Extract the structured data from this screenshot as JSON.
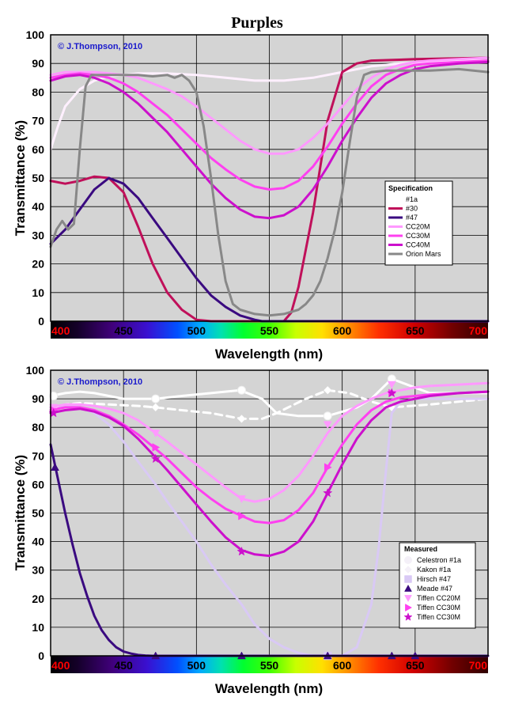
{
  "figure_title": "Purples",
  "copyright": "© J.Thompson, 2010",
  "chart_data": [
    {
      "type": "line",
      "ylabel": "Transmittance (%)",
      "xlabel": "Wavelength (nm)",
      "xlim": [
        400,
        700
      ],
      "ylim": [
        0,
        100
      ],
      "xticks": [
        "400",
        "450",
        "500",
        "550",
        "600",
        "650",
        "700"
      ],
      "yticks": [
        "0",
        "10",
        "20",
        "30",
        "40",
        "50",
        "60",
        "70",
        "80",
        "90",
        "100"
      ],
      "grid": true,
      "x_axis_background": "visible spectrum",
      "legend": {
        "title": "Specification",
        "placement": "right-middle",
        "entries": [
          "#1a",
          "#30",
          "#47",
          "CC20M",
          "CC30M",
          "CC40M",
          "Orion Mars"
        ]
      },
      "series": [
        {
          "name": "#1a",
          "color": "#fff0ff",
          "width": 3,
          "x": [
            400,
            405,
            410,
            420,
            430,
            440,
            450,
            460,
            480,
            500,
            520,
            540,
            550,
            560,
            580,
            600,
            620,
            640,
            660,
            680,
            700
          ],
          "y": [
            60,
            68,
            75,
            81,
            84,
            85.5,
            86,
            86.5,
            86.5,
            86,
            85,
            84,
            84,
            84,
            85,
            87,
            89,
            90,
            90.5,
            91,
            91
          ]
        },
        {
          "name": "#30",
          "color": "#c0105a",
          "width": 3,
          "x": [
            400,
            410,
            420,
            430,
            440,
            450,
            460,
            470,
            480,
            490,
            500,
            510,
            560,
            565,
            570,
            580,
            590,
            600,
            610,
            620,
            650,
            700
          ],
          "y": [
            49,
            48,
            49,
            50.5,
            50,
            45,
            33,
            20,
            10,
            4,
            0.5,
            0,
            0,
            3,
            12,
            38,
            70,
            87,
            90,
            91,
            91.5,
            92
          ]
        },
        {
          "name": "#47",
          "color": "#3a0a80",
          "width": 3,
          "x": [
            400,
            410,
            420,
            430,
            440,
            450,
            460,
            470,
            480,
            490,
            500,
            510,
            520,
            530,
            540,
            545,
            700
          ],
          "y": [
            27,
            32,
            39,
            46,
            50,
            48,
            43,
            36,
            29,
            22,
            15,
            9,
            5,
            2,
            0.5,
            0,
            0
          ]
        },
        {
          "name": "CC20M",
          "color": "#ff99ff",
          "width": 3,
          "x": [
            400,
            410,
            420,
            430,
            440,
            450,
            460,
            470,
            480,
            490,
            500,
            510,
            520,
            530,
            540,
            550,
            560,
            570,
            580,
            590,
            600,
            610,
            620,
            630,
            640,
            650,
            660,
            680,
            700
          ],
          "y": [
            86,
            87,
            87,
            87,
            86.5,
            86,
            85,
            83,
            81,
            78.5,
            75,
            71,
            67,
            63,
            60,
            58.5,
            58.5,
            60,
            64,
            69,
            75,
            81,
            85,
            88,
            89.5,
            90.5,
            91,
            91.5,
            92
          ]
        },
        {
          "name": "CC30M",
          "color": "#ff40f0",
          "width": 3,
          "x": [
            400,
            410,
            420,
            430,
            440,
            450,
            460,
            470,
            480,
            490,
            500,
            510,
            520,
            530,
            540,
            550,
            560,
            570,
            580,
            590,
            600,
            610,
            620,
            630,
            640,
            650,
            660,
            680,
            700
          ],
          "y": [
            85,
            86,
            86.5,
            86,
            85,
            83,
            80,
            76,
            72,
            67,
            62,
            57,
            53,
            49.5,
            47,
            46,
            46.5,
            49,
            54,
            61,
            69,
            76,
            82,
            86,
            88,
            89.5,
            90,
            90.5,
            91
          ]
        },
        {
          "name": "CC40M",
          "color": "#cc10cc",
          "width": 3,
          "x": [
            400,
            410,
            420,
            430,
            440,
            450,
            460,
            470,
            480,
            490,
            500,
            510,
            520,
            530,
            540,
            550,
            560,
            570,
            580,
            590,
            600,
            610,
            620,
            630,
            640,
            650,
            660,
            680,
            700
          ],
          "y": [
            84,
            85.5,
            86,
            85,
            83,
            80,
            76,
            71,
            66,
            60,
            54,
            48,
            43,
            39,
            36.5,
            36,
            37,
            40,
            46,
            54,
            63,
            71,
            78,
            83,
            86,
            88,
            89,
            90,
            90.5
          ]
        },
        {
          "name": "Orion Mars",
          "color": "#888888",
          "width": 3,
          "x": [
            400,
            404,
            408,
            412,
            416,
            420,
            424,
            428,
            432,
            436,
            440,
            450,
            460,
            470,
            480,
            485,
            490,
            495,
            500,
            505,
            510,
            515,
            520,
            525,
            530,
            540,
            550,
            560,
            570,
            575,
            580,
            585,
            590,
            595,
            600,
            605,
            610,
            615,
            620,
            630,
            640,
            660,
            680,
            700
          ],
          "y": [
            26,
            32,
            35,
            32,
            34,
            60,
            82,
            86,
            86,
            86,
            86,
            86,
            86,
            85.5,
            86,
            85,
            86,
            84,
            80,
            68,
            50,
            30,
            14,
            6,
            4,
            2.5,
            2,
            2.5,
            4,
            6,
            9,
            14,
            22,
            32,
            45,
            62,
            78,
            86,
            87,
            87.5,
            87.5,
            87.5,
            88,
            87
          ]
        }
      ]
    },
    {
      "type": "line",
      "ylabel": "Transmittance (%)",
      "xlabel": "Wavelength (nm)",
      "xlim": [
        400,
        700
      ],
      "ylim": [
        0,
        100
      ],
      "xticks": [
        "400",
        "450",
        "500",
        "550",
        "600",
        "650",
        "700"
      ],
      "yticks": [
        "0",
        "10",
        "20",
        "30",
        "40",
        "50",
        "60",
        "70",
        "80",
        "90",
        "100"
      ],
      "grid": true,
      "x_axis_background": "visible spectrum",
      "legend": {
        "title": "Measured",
        "placement": "bottom-right",
        "entries": [
          "Celestron #1a",
          "Kakon #1a",
          "Hirsch #47",
          "Meade #47",
          "Tiffen CC20M",
          "Tiffen CC30M",
          "Tiffen CC30M"
        ]
      },
      "series": [
        {
          "name": "Celestron #1a",
          "color": "#ffffff",
          "marker": "circle",
          "dash": false,
          "x": [
            400,
            410,
            420,
            430,
            440,
            450,
            460,
            472,
            490,
            510,
            530,
            545,
            555,
            570,
            590,
            610,
            620,
            634,
            660,
            700
          ],
          "y": [
            91,
            92,
            92.5,
            92,
            91,
            90,
            90,
            90,
            91,
            92,
            93,
            90,
            85,
            84,
            84,
            87,
            90,
            97,
            92,
            92
          ],
          "mx": [
            402,
            472,
            531,
            590,
            634
          ],
          "my": [
            91,
            90,
            93,
            84,
            97
          ]
        },
        {
          "name": "Kakon #1a",
          "color": "#ffffff",
          "marker": "diamond",
          "dash": true,
          "x": [
            400,
            410,
            420,
            440,
            460,
            472,
            490,
            510,
            531,
            545,
            555,
            565,
            575,
            590,
            605,
            620,
            634,
            660,
            700
          ],
          "y": [
            86,
            88,
            88.5,
            88,
            87.5,
            87,
            86,
            85,
            83,
            83,
            85,
            87.5,
            90,
            93,
            92,
            89,
            87,
            88,
            90
          ],
          "mx": [
            402,
            472,
            531,
            590,
            634
          ],
          "my": [
            86,
            87,
            83,
            93,
            87
          ]
        },
        {
          "name": "Hirsch #47",
          "color": "#d9c9f5",
          "marker": "square",
          "dash": false,
          "x": [
            400,
            410,
            420,
            430,
            440,
            450,
            460,
            472,
            480,
            490,
            500,
            510,
            520,
            531,
            540,
            550,
            560,
            570,
            580,
            590,
            600,
            610,
            620,
            625,
            630,
            634,
            640,
            650,
            660,
            680,
            700
          ],
          "y": [
            85,
            88,
            87,
            85,
            81,
            75,
            68,
            60,
            54,
            47,
            40,
            32,
            25,
            18,
            11,
            6,
            3,
            1,
            0,
            0,
            0,
            3,
            18,
            38,
            65,
            85,
            89,
            90,
            90,
            90,
            90
          ],
          "mx": [
            590
          ],
          "my": [
            0
          ]
        },
        {
          "name": "Meade #47",
          "color": "#3a0a80",
          "marker": "triangle-up",
          "dash": false,
          "x": [
            400,
            405,
            410,
            415,
            420,
            425,
            430,
            435,
            440,
            445,
            450,
            455,
            460,
            465,
            470,
            475,
            480,
            700
          ],
          "y": [
            74,
            62,
            50,
            39,
            29,
            21,
            14,
            9,
            5.5,
            3,
            1.5,
            0.8,
            0.3,
            0.1,
            0,
            0,
            0,
            0
          ],
          "mx": [
            403,
            472,
            531,
            590,
            634,
            650
          ],
          "my": [
            66,
            0,
            0,
            0,
            0,
            0
          ]
        },
        {
          "name": "Tiffen CC20M",
          "color": "#ff99ff",
          "marker": "triangle-down",
          "dash": false,
          "x": [
            400,
            410,
            420,
            430,
            440,
            450,
            460,
            472,
            480,
            490,
            500,
            510,
            520,
            531,
            540,
            550,
            560,
            570,
            580,
            590,
            600,
            610,
            620,
            630,
            640,
            650,
            660,
            680,
            700
          ],
          "y": [
            87,
            88,
            88,
            87.5,
            86.5,
            85,
            82.5,
            78,
            75,
            71,
            67,
            63,
            59,
            55,
            54,
            55,
            58,
            63,
            70,
            78,
            84,
            87.5,
            90,
            92,
            93,
            94,
            94.5,
            95,
            95.5
          ],
          "mx": [
            402,
            472,
            531,
            590,
            634
          ],
          "my": [
            87,
            78,
            55,
            81,
            95
          ]
        },
        {
          "name": "Tiffen CC30M",
          "color": "#ff40f0",
          "marker": "triangle-right",
          "dash": false,
          "x": [
            400,
            410,
            420,
            430,
            440,
            450,
            460,
            472,
            480,
            490,
            500,
            510,
            520,
            531,
            540,
            550,
            560,
            570,
            580,
            590,
            600,
            610,
            620,
            630,
            640,
            650,
            660,
            680,
            700
          ],
          "y": [
            86,
            87,
            87,
            86,
            84,
            81,
            77.5,
            72.5,
            69,
            64,
            59,
            55,
            51.5,
            49,
            47,
            46.5,
            47.5,
            51,
            57,
            66,
            74,
            81,
            86,
            89,
            90.5,
            91,
            91.5,
            92,
            92.5
          ],
          "mx": [
            402,
            472,
            531,
            590,
            634
          ],
          "my": [
            86,
            73,
            49,
            66,
            92
          ]
        },
        {
          "name": "Tiffen CC30M",
          "color": "#cc10cc",
          "marker": "star",
          "dash": false,
          "x": [
            400,
            410,
            420,
            430,
            440,
            450,
            460,
            472,
            480,
            490,
            500,
            510,
            520,
            531,
            540,
            550,
            560,
            570,
            580,
            590,
            600,
            610,
            620,
            630,
            640,
            650,
            660,
            680,
            700
          ],
          "y": [
            85,
            86,
            86.5,
            85.5,
            83.5,
            80.5,
            76,
            69.5,
            65,
            59,
            53,
            47,
            41.5,
            37,
            35.5,
            35,
            36.5,
            40,
            47,
            57,
            67,
            76,
            82.5,
            87,
            89,
            90,
            91,
            92,
            92.5
          ],
          "mx": [
            402,
            472,
            531,
            590,
            634
          ],
          "my": [
            85,
            69,
            36.5,
            57,
            92
          ]
        }
      ]
    }
  ]
}
